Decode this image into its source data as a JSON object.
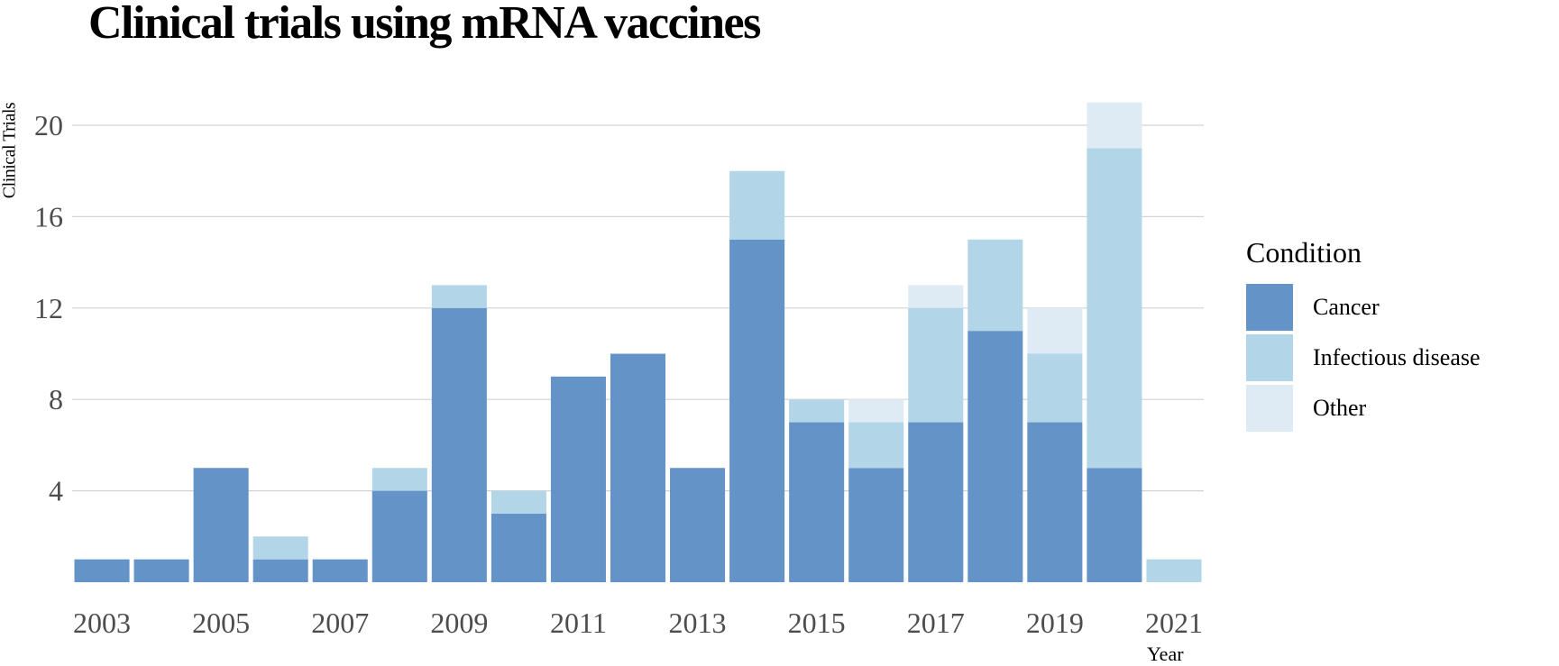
{
  "chart_data": {
    "type": "bar",
    "stacked": true,
    "title": "Clinical trials using mRNA vaccines",
    "xlabel": "Year",
    "ylabel": "Clinical Trials",
    "categories": [
      2003,
      2004,
      2005,
      2006,
      2007,
      2008,
      2009,
      2010,
      2011,
      2012,
      2013,
      2014,
      2015,
      2016,
      2017,
      2018,
      2019,
      2020,
      2021
    ],
    "x_tick_labels": [
      "2003",
      "2005",
      "2007",
      "2009",
      "2011",
      "2013",
      "2015",
      "2017",
      "2019",
      "2021"
    ],
    "y_ticks": [
      4,
      8,
      12,
      16,
      20
    ],
    "ylim": [
      0,
      22
    ],
    "grid": "horizontal",
    "legend": {
      "title": "Condition",
      "position": "right"
    },
    "series": [
      {
        "name": "Cancer",
        "color": "#6494c7",
        "values": [
          1,
          1,
          5,
          1,
          1,
          4,
          12,
          3,
          9,
          10,
          5,
          15,
          7,
          5,
          7,
          11,
          7,
          5,
          0
        ]
      },
      {
        "name": "Infectious disease",
        "color": "#b3d5e8",
        "values": [
          0,
          0,
          0,
          1,
          0,
          1,
          1,
          1,
          0,
          0,
          0,
          3,
          1,
          2,
          5,
          4,
          3,
          14,
          1
        ]
      },
      {
        "name": "Other",
        "color": "#deebf4",
        "values": [
          0,
          0,
          0,
          0,
          0,
          0,
          0,
          0,
          0,
          0,
          0,
          0,
          0,
          1,
          1,
          0,
          2,
          2,
          0
        ]
      }
    ]
  }
}
